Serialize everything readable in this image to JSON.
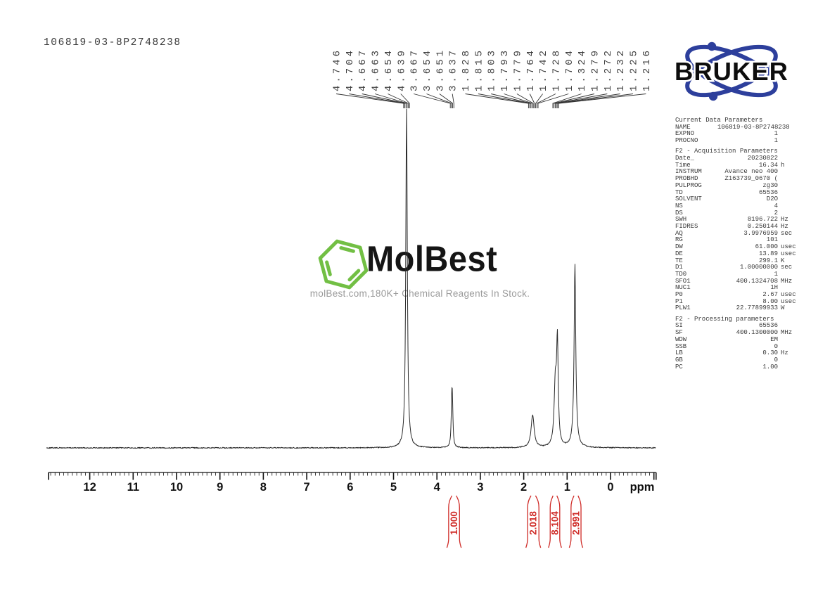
{
  "title_block": {
    "sample_id": "106819-03-8P2748238"
  },
  "bruker_logo": {
    "text": "BRUKER",
    "blue": "#2d3f9c"
  },
  "watermark": {
    "brand": "MolBest",
    "tagline": "molBest.com,180K+ Chemical Reagents In Stock.",
    "hex_color": "#72bf44"
  },
  "parameters": {
    "sections": [
      {
        "title": "Current Data Parameters",
        "rows": [
          [
            "NAME",
            "106819-03-8P2748238",
            ""
          ],
          [
            "EXPNO",
            "1",
            ""
          ],
          [
            "PROCNO",
            "1",
            ""
          ]
        ]
      },
      {
        "title": "F2 - Acquisition Parameters",
        "rows": [
          [
            "Date_",
            "20230822",
            ""
          ],
          [
            "Time",
            "16.34",
            "h"
          ],
          [
            "INSTRUM",
            "Avance neo 400",
            ""
          ],
          [
            "PROBHD",
            "Z163739_0670 (",
            ""
          ],
          [
            "PULPROG",
            "zg30",
            ""
          ],
          [
            "TD",
            "65536",
            ""
          ],
          [
            "SOLVENT",
            "D2O",
            ""
          ],
          [
            "NS",
            "4",
            ""
          ],
          [
            "DS",
            "2",
            ""
          ],
          [
            "SWH",
            "8196.722",
            "Hz"
          ],
          [
            "FIDRES",
            "0.250144",
            "Hz"
          ],
          [
            "AQ",
            "3.9976959",
            "sec"
          ],
          [
            "RG",
            "101",
            ""
          ],
          [
            "DW",
            "61.000",
            "usec"
          ],
          [
            "DE",
            "13.89",
            "usec"
          ],
          [
            "TE",
            "299.1",
            "K"
          ],
          [
            "D1",
            "1.00000000",
            "sec"
          ],
          [
            "TD0",
            "1",
            ""
          ],
          [
            "SFO1",
            "400.1324708",
            "MHz"
          ],
          [
            "NUC1",
            "1H",
            ""
          ],
          [
            "P0",
            "2.67",
            "usec"
          ],
          [
            "P1",
            "8.00",
            "usec"
          ],
          [
            "PLW1",
            "22.77899933",
            "W"
          ]
        ]
      },
      {
        "title": "F2 - Processing parameters",
        "rows": [
          [
            "SI",
            "65536",
            ""
          ],
          [
            "SF",
            "400.1300000",
            "MHz"
          ],
          [
            "WDW",
            "EM",
            ""
          ],
          [
            "SSB",
            "0",
            ""
          ],
          [
            "LB",
            "0.30",
            "Hz"
          ],
          [
            "GB",
            "0",
            ""
          ],
          [
            "PC",
            "1.00",
            ""
          ]
        ]
      }
    ]
  },
  "chart_data": {
    "type": "line",
    "kind": "1H NMR spectrum",
    "xlabel": "ppm",
    "x_range": [
      12.95,
      -1.05
    ],
    "x_ticks": [
      12,
      11,
      10,
      9,
      8,
      7,
      6,
      5,
      4,
      3,
      2,
      1,
      0
    ],
    "grid": false,
    "peak_label_groups": [
      {
        "target_ppm": 4.7,
        "labels": [
          "4.746",
          "4.704",
          "4.667",
          "4.663",
          "4.654",
          "4.639"
        ]
      },
      {
        "target_ppm": 3.65,
        "labels": [
          "3.667",
          "3.654",
          "3.651",
          "3.637"
        ]
      },
      {
        "target_ppm": 1.78,
        "labels": [
          "1.828",
          "1.815",
          "1.803",
          "1.793",
          "1.779",
          "1.764",
          "1.742",
          "1.728",
          "1.704"
        ]
      },
      {
        "target_ppm": 1.26,
        "labels": [
          "1.324",
          "1.279",
          "1.272",
          "1.232",
          "1.225",
          "1.216"
        ]
      }
    ],
    "peaks": [
      {
        "ppm": 4.7,
        "rel_height": 482,
        "width": 1.3
      },
      {
        "ppm": 3.66,
        "rel_height": 46,
        "width": 0.9
      },
      {
        "ppm": 3.645,
        "rel_height": 60,
        "width": 1.0
      },
      {
        "ppm": 1.795,
        "rel_height": 46,
        "width": 2.6
      },
      {
        "ppm": 1.272,
        "rel_height": 86,
        "width": 2.0
      },
      {
        "ppm": 1.224,
        "rel_height": 140,
        "width": 1.4
      },
      {
        "ppm": 0.82,
        "rel_height": 232,
        "width": 1.3
      },
      {
        "ppm": 0.82,
        "rel_height": 30,
        "width": 3.0
      }
    ],
    "integrals": [
      {
        "value": "1.000",
        "from_ppm": 3.73,
        "to_ppm": 3.48
      },
      {
        "value": "2.018",
        "from_ppm": 1.91,
        "to_ppm": 1.65
      },
      {
        "value": "8.104",
        "from_ppm": 1.39,
        "to_ppm": 1.17
      },
      {
        "value": "2.991",
        "from_ppm": 0.91,
        "to_ppm": 0.68
      }
    ],
    "colors": {
      "trace": "#2a2a2a",
      "axis": "#111111",
      "integral": "#cf2a26",
      "labels": "#3d3d3d"
    }
  }
}
